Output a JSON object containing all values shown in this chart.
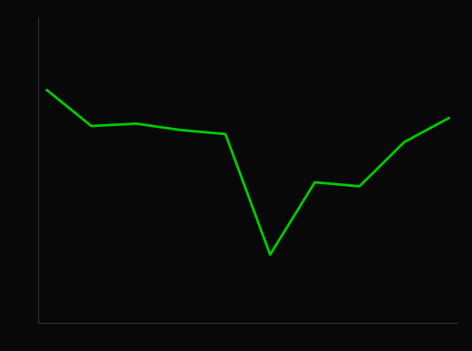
{
  "y_values": [
    29.0,
    24.5,
    24.8,
    24.0,
    23.5,
    8.5,
    17.5,
    17.0,
    22.5,
    25.5
  ],
  "line_color": "#00cc00",
  "background_color": "#080808",
  "spine_color": "#303030",
  "line_width": 2.0,
  "ylim": [
    0,
    38
  ],
  "xlim": [
    -0.2,
    9.2
  ]
}
